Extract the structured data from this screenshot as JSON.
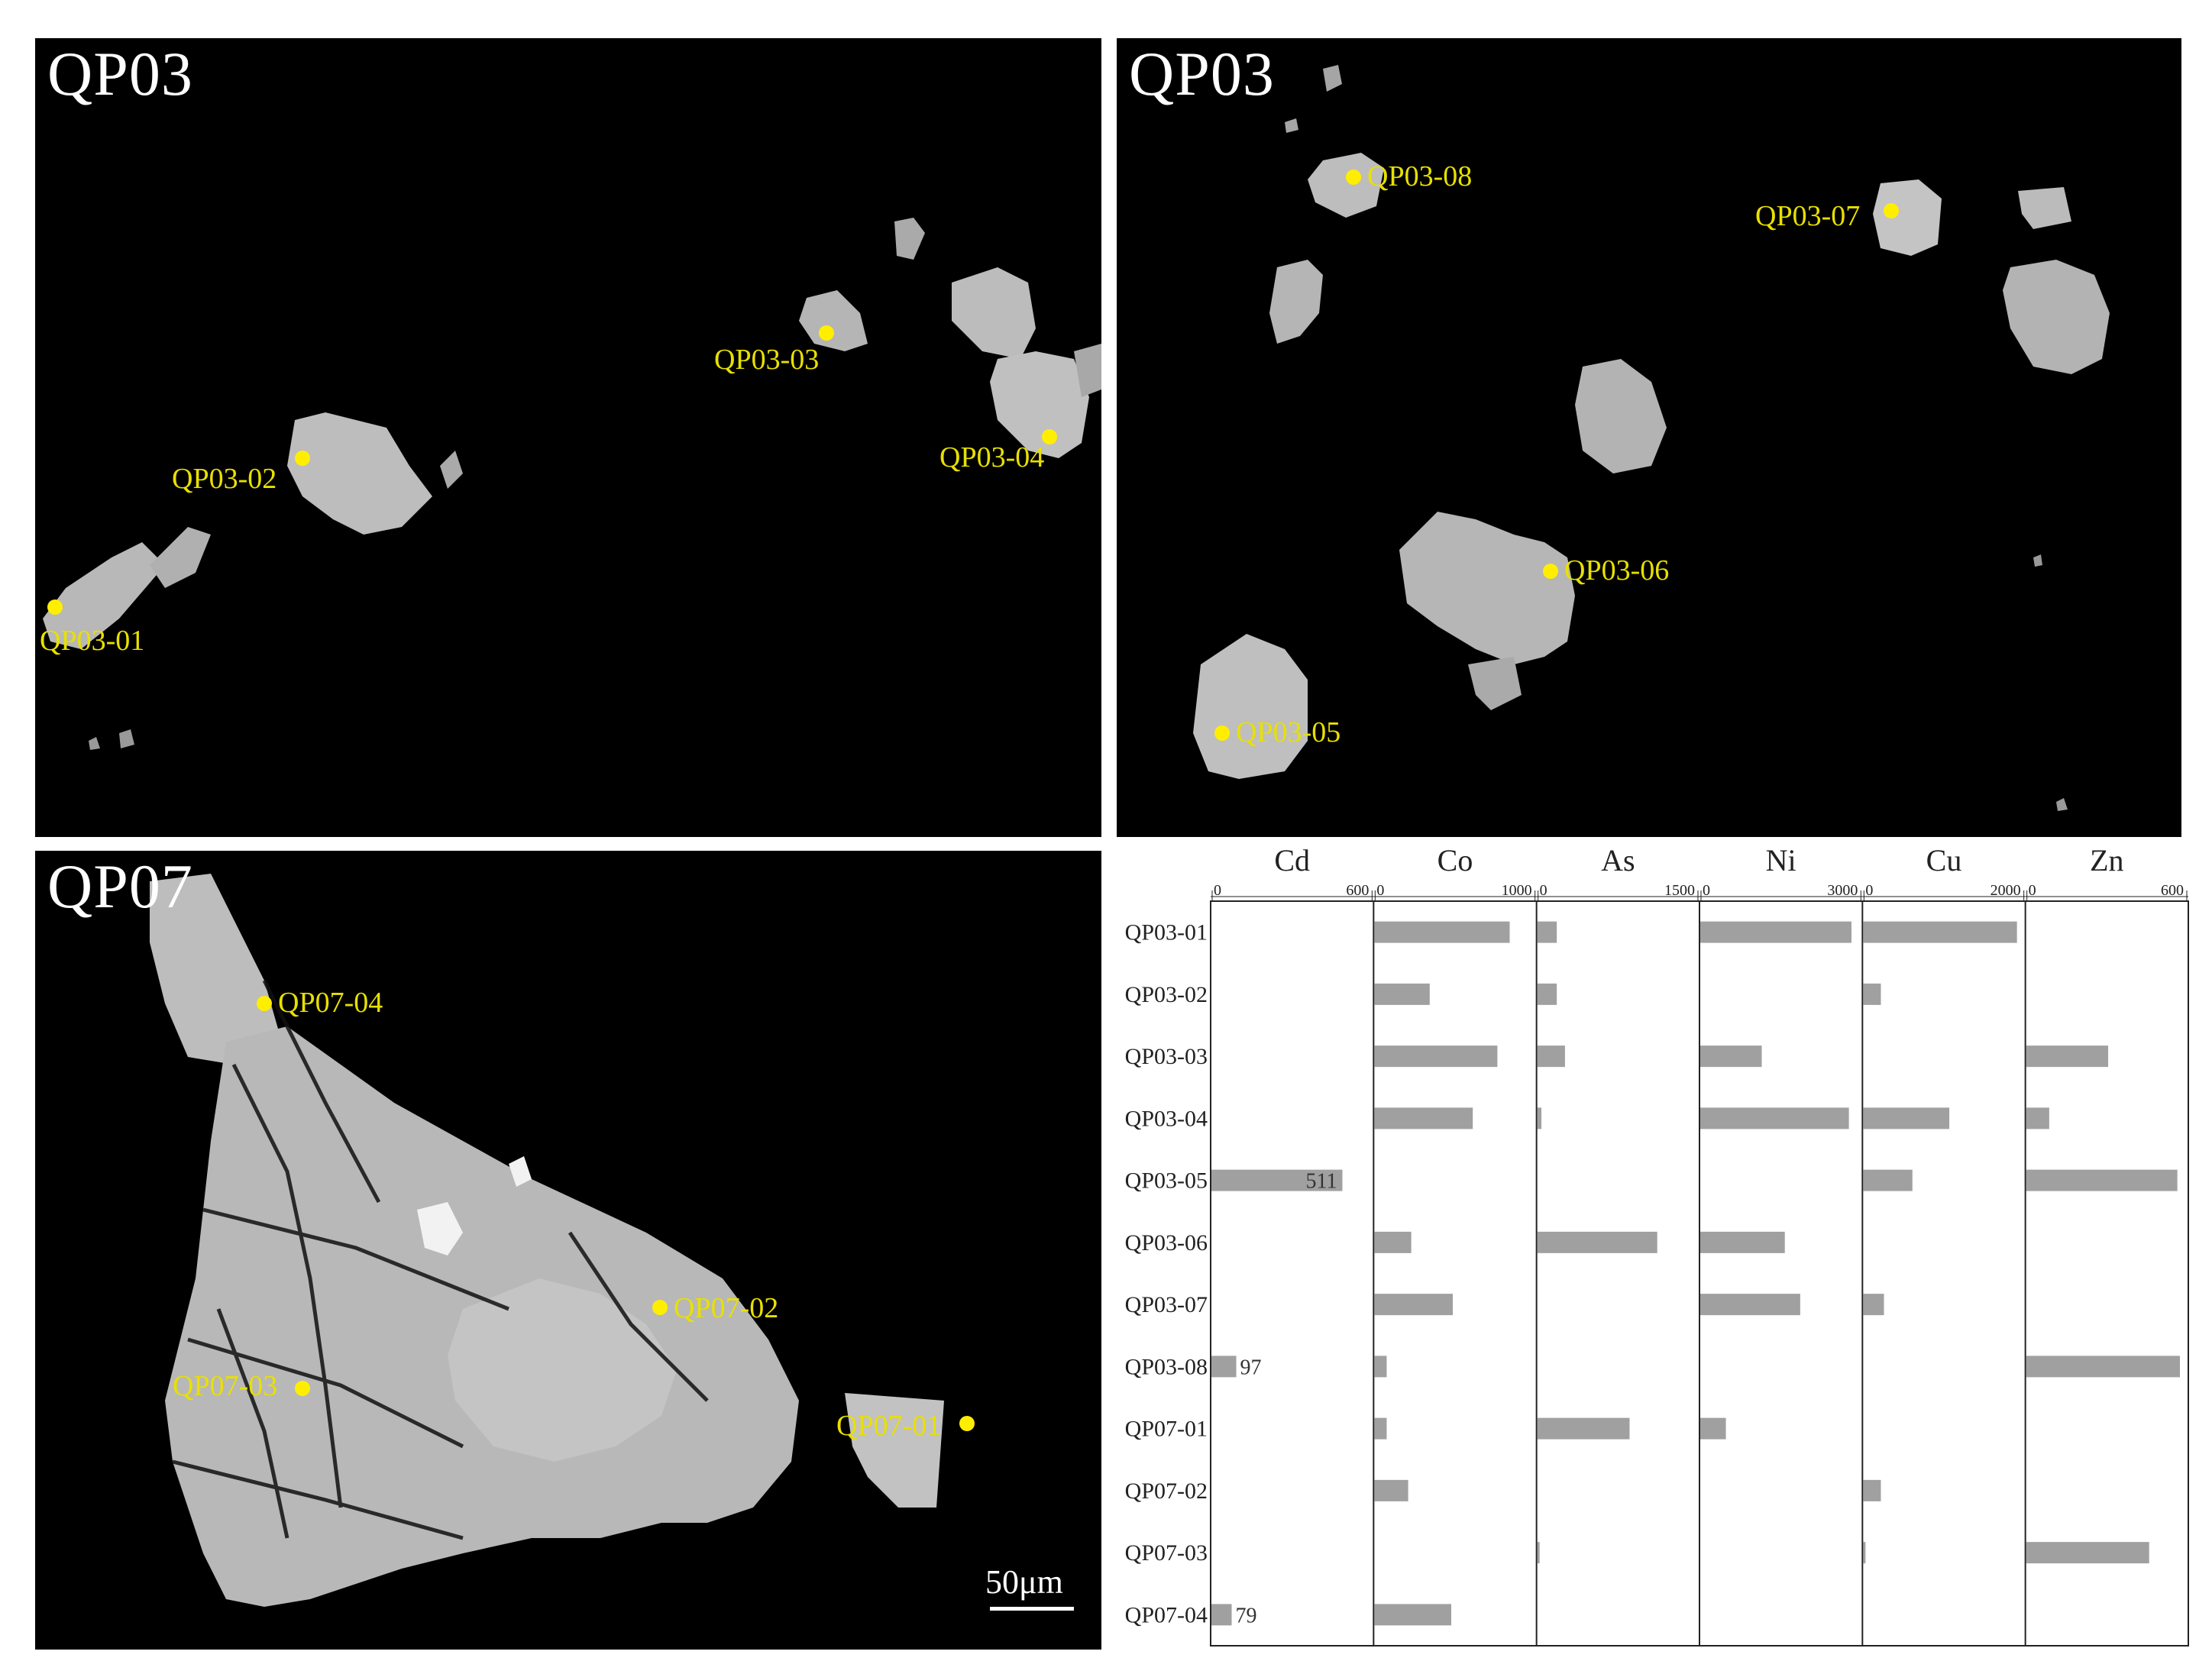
{
  "panels": [
    {
      "label": "QP03",
      "spots": [
        {
          "id": "QP03-01",
          "x": 30,
          "y": 745
        },
        {
          "id": "QP03-02",
          "x": 350,
          "y": 550
        },
        {
          "id": "QP03-03",
          "x": 1035,
          "y": 385
        },
        {
          "id": "QP03-04",
          "x": 1330,
          "y": 520
        }
      ]
    },
    {
      "label": "QP03",
      "spots": [
        {
          "id": "QP03-05",
          "x": 140,
          "y": 908
        },
        {
          "id": "QP03-06",
          "x": 575,
          "y": 700
        },
        {
          "id": "QP03-07",
          "x": 1020,
          "y": 228
        },
        {
          "id": "QP03-08",
          "x": 315,
          "y": 182
        }
      ]
    },
    {
      "label": "QP07",
      "spots": [
        {
          "id": "QP07-01",
          "x": 1220,
          "y": 1820
        },
        {
          "id": "QP07-02",
          "x": 815,
          "y": 1665
        },
        {
          "id": "QP07-03",
          "x": 350,
          "y": 1770
        },
        {
          "id": "QP07-04",
          "x": 300,
          "y": 1200
        }
      ]
    }
  ],
  "scale_bar": {
    "text": "50μm"
  },
  "colors": {
    "spot": "#ffee00",
    "bar": "#a0a0a0",
    "background": "#000000"
  },
  "chart_data": {
    "type": "bar",
    "orientation": "horizontal",
    "categories": [
      "QP03-01",
      "QP03-02",
      "QP03-03",
      "QP03-04",
      "QP03-05",
      "QP03-06",
      "QP03-07",
      "QP03-08",
      "QP07-01",
      "QP07-02",
      "QP07-03",
      "QP07-04"
    ],
    "series": [
      {
        "name": "Cd",
        "max": 600,
        "ticks": [
          "0",
          "600"
        ],
        "values": [
          0,
          0,
          0,
          0,
          511,
          0,
          0,
          97,
          0,
          0,
          0,
          79
        ],
        "labels": {
          "4": "511",
          "7": "97",
          "11": "79"
        }
      },
      {
        "name": "Co",
        "max": 1000,
        "ticks": [
          "0",
          "1000"
        ],
        "values": [
          880,
          360,
          800,
          640,
          0,
          240,
          510,
          80,
          80,
          220,
          0,
          500
        ]
      },
      {
        "name": "As",
        "max": 1500,
        "ticks": [
          "0",
          "1500"
        ],
        "values": [
          190,
          190,
          270,
          40,
          0,
          1170,
          0,
          0,
          900,
          0,
          20,
          0
        ]
      },
      {
        "name": "Ni",
        "max": 3000,
        "ticks": [
          "0",
          "3000"
        ],
        "values": [
          2950,
          0,
          1200,
          2900,
          0,
          1650,
          1950,
          0,
          500,
          0,
          0,
          0
        ]
      },
      {
        "name": "Cu",
        "max": 2000,
        "ticks": [
          "0",
          "2000"
        ],
        "values": [
          2050,
          230,
          0,
          1120,
          640,
          0,
          270,
          0,
          0,
          230,
          30,
          0
        ]
      },
      {
        "name": "Zn",
        "max": 600,
        "ticks": [
          "0",
          "600"
        ],
        "values": [
          0,
          0,
          320,
          90,
          590,
          0,
          0,
          610,
          0,
          0,
          480,
          0
        ]
      }
    ]
  }
}
